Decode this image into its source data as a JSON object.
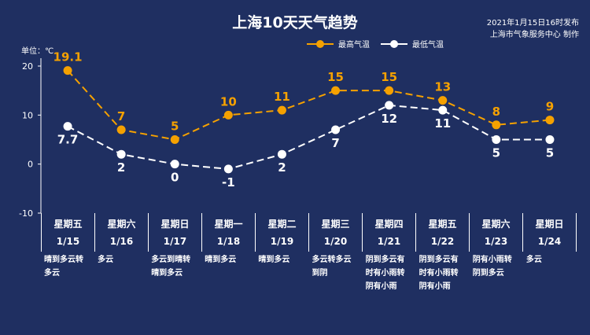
{
  "title": "上海10天天气趋势",
  "published": "2021年1月15日16时发布",
  "producer": "上海市气象服务中心 制作",
  "unit_label": "单位：℃",
  "colors": {
    "background": "#1f2f61",
    "high": "#f5a100",
    "low": "#ffffff"
  },
  "chart_data": {
    "type": "line",
    "ylim": [
      -10,
      20
    ],
    "yticks": [
      "20",
      "10",
      "0",
      "-10"
    ],
    "legend_position": "top-right",
    "categories": [
      "1/15",
      "1/16",
      "1/17",
      "1/18",
      "1/19",
      "1/20",
      "1/21",
      "1/22",
      "1/23",
      "1/24"
    ],
    "series": [
      {
        "name": "最高气温",
        "values": [
          19.1,
          7,
          5,
          10,
          11,
          15,
          15,
          13,
          8,
          9
        ],
        "labels": [
          "19.1",
          "7",
          "5",
          "10",
          "11",
          "15",
          "15",
          "13",
          "8",
          "9"
        ]
      },
      {
        "name": "最低气温",
        "values": [
          7.7,
          2,
          0,
          -1,
          2,
          7,
          12,
          11,
          5,
          5
        ],
        "labels": [
          "7.7",
          "2",
          "0",
          "-1",
          "2",
          "7",
          "12",
          "11",
          "5",
          "5"
        ]
      }
    ]
  },
  "days": [
    {
      "weekday": "星期五",
      "date": "1/15",
      "weather": "晴到多云转\n多云"
    },
    {
      "weekday": "星期六",
      "date": "1/16",
      "weather": "多云"
    },
    {
      "weekday": "星期日",
      "date": "1/17",
      "weather": "多云到晴转\n晴到多云"
    },
    {
      "weekday": "星期一",
      "date": "1/18",
      "weather": "晴到多云"
    },
    {
      "weekday": "星期二",
      "date": "1/19",
      "weather": "晴到多云"
    },
    {
      "weekday": "星期三",
      "date": "1/20",
      "weather": "多云转多云\n到阴"
    },
    {
      "weekday": "星期四",
      "date": "1/21",
      "weather": "阴到多云有\n时有小雨转\n阴有小雨"
    },
    {
      "weekday": "星期五",
      "date": "1/22",
      "weather": "阴到多云有\n时有小雨转\n阴有小雨"
    },
    {
      "weekday": "星期六",
      "date": "1/23",
      "weather": "阴有小雨转\n阴到多云"
    },
    {
      "weekday": "星期日",
      "date": "1/24",
      "weather": "多云"
    }
  ]
}
